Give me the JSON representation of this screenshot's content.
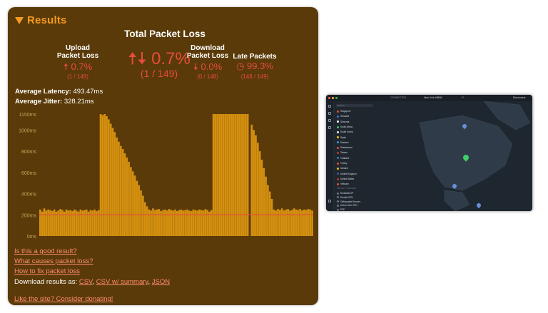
{
  "results": {
    "title": "Results",
    "total_title": "Total Packet Loss",
    "upload": {
      "label_line1": "Upload",
      "label_line2": "Packet Loss",
      "value": "0.7%",
      "sub": "(1 / 149)"
    },
    "total": {
      "value": "0.7%",
      "sub": "(1 / 149)"
    },
    "download": {
      "label_line1": "Download",
      "label_line2": "Packet Loss",
      "value": "0.0%",
      "sub": "(0 / 148)"
    },
    "late": {
      "label": "Late Packets",
      "value": "99.3%",
      "sub": "(148 / 149)"
    },
    "latency_label": "Average Latency:",
    "latency_value": "493.47ms",
    "jitter_label": "Average Jitter:",
    "jitter_value": "328.21ms"
  },
  "chart_data": {
    "type": "bar",
    "ylim": [
      0,
      1150
    ],
    "y_ticks": [
      "0ms",
      "200ms",
      "400ms",
      "600ms",
      "800ms",
      "1000ms",
      "1150ms"
    ],
    "reference_line": 200,
    "colors": {
      "bar": "#d4900f",
      "line": "#e74c3c"
    },
    "values": [
      250,
      230,
      260,
      240,
      250,
      245,
      235,
      250,
      230,
      240,
      255,
      245,
      230,
      250,
      240,
      245,
      235,
      250,
      240,
      230,
      250,
      240,
      245,
      250,
      230,
      245,
      240,
      250,
      235,
      245,
      1150,
      1140,
      1150,
      1130,
      1100,
      1060,
      1020,
      980,
      930,
      890,
      850,
      820,
      780,
      740,
      700,
      650,
      610,
      570,
      520,
      480,
      430,
      380,
      320,
      280,
      250,
      240,
      260,
      245,
      250,
      255,
      235,
      245,
      250,
      240,
      255,
      245,
      240,
      250,
      235,
      245,
      250,
      240,
      245,
      250,
      240,
      235,
      250,
      245,
      240,
      250,
      245,
      240,
      255,
      245,
      230,
      245,
      1150,
      1150,
      1150,
      1150,
      1150,
      1150,
      1150,
      1150,
      1150,
      1150,
      1150,
      1150,
      1150,
      1150,
      1150,
      1150,
      1150,
      1150,
      0,
      1050,
      1000,
      950,
      880,
      800,
      720,
      640,
      560,
      480,
      420,
      350,
      250,
      240,
      255,
      245,
      260,
      240,
      250,
      255,
      240,
      245,
      260,
      250,
      245,
      255,
      240,
      250,
      245,
      255,
      250,
      240
    ]
  },
  "links": {
    "good": "Is this a good result?",
    "causes": "What causes packet loss?",
    "fix": "How to fix packet loss",
    "download_prefix": "Download results as: ",
    "csv": "CSV",
    "csv_summary": "CSV w/ summary",
    "json": "JSON",
    "donate": "Like the site? Consider donating!"
  },
  "mini_app": {
    "status": "CONNECTED",
    "location": "New York #8846",
    "ip": "IP",
    "disconnect": "Disconnect",
    "search_placeholder": "Search",
    "countries": [
      "Singapore",
      "Slovakia",
      "Slovenia",
      "South Africa",
      "South Korea",
      "Spain",
      "Sweden",
      "Switzerland",
      "Taiwan",
      "Thailand",
      "Turkey",
      "Ukraine",
      "United Kingdom",
      "United States",
      "Vietnam"
    ],
    "section_label": "SPECIALTY SERVERS",
    "specialty": [
      "Dedicated IP",
      "Double VPN",
      "Obfuscated Servers",
      "Onion Over VPN",
      "P2P"
    ]
  }
}
